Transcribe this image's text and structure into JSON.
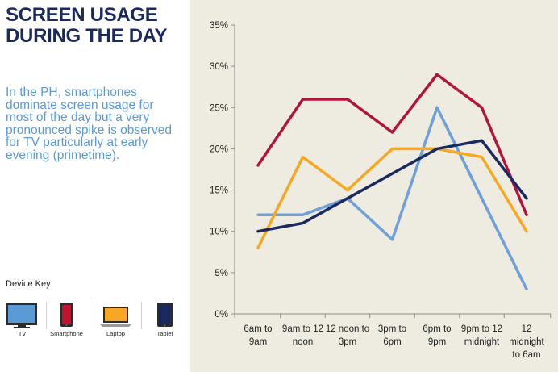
{
  "header": {
    "title_line1": "SCREEN USAGE",
    "title_line2": "DURING THE DAY"
  },
  "description": {
    "line1": "In the PH, smartphones",
    "line2": "dominate screen usage for",
    "line3": "most of the day but a very",
    "line4": "pronounced spike is observed",
    "line5": "for TV particularly at early",
    "line6": "evening (primetime)."
  },
  "device_key": {
    "title": "Device Key",
    "devices": [
      {
        "label": "TV",
        "icon": "tv-icon",
        "color": "#5b9bd5"
      },
      {
        "label": "Smartphone",
        "icon": "smartphone-icon",
        "color": "#b0163d"
      },
      {
        "label": "Laptop",
        "icon": "laptop-icon",
        "color": "#f7a823"
      },
      {
        "label": "Tablet",
        "icon": "tablet-icon",
        "color": "#1b2a5e"
      }
    ]
  },
  "chart_data": {
    "type": "line",
    "categories": [
      [
        "6am to",
        "9am"
      ],
      [
        "9am to 12",
        "noon"
      ],
      [
        "12 noon to",
        "3pm"
      ],
      [
        "3pm to",
        "6pm"
      ],
      [
        "6pm to",
        "9pm"
      ],
      [
        "9pm to 12",
        "midnight"
      ],
      [
        "12",
        "midnight",
        "to 6am"
      ]
    ],
    "series": [
      {
        "key": "smartphone",
        "color": "#b0163d",
        "values": [
          18,
          26,
          26,
          22,
          29,
          25,
          12
        ]
      },
      {
        "key": "tv",
        "color": "#6fa0d8",
        "values": [
          12,
          12,
          14,
          9,
          25,
          14,
          3
        ]
      },
      {
        "key": "laptop",
        "color": "#f7a823",
        "values": [
          8,
          19,
          15,
          20,
          20,
          19,
          10
        ]
      },
      {
        "key": "tablet",
        "color": "#1b2a5e",
        "values": [
          10,
          11,
          14,
          17,
          20,
          21,
          14
        ]
      }
    ],
    "ylim": [
      0,
      35
    ],
    "yticks": [
      0,
      5,
      10,
      15,
      20,
      25,
      30,
      35
    ],
    "ytick_labels": [
      "0%",
      "5%",
      "10%",
      "15%",
      "20%",
      "25%",
      "30%",
      "35%"
    ],
    "grid": false,
    "legend": "none"
  }
}
